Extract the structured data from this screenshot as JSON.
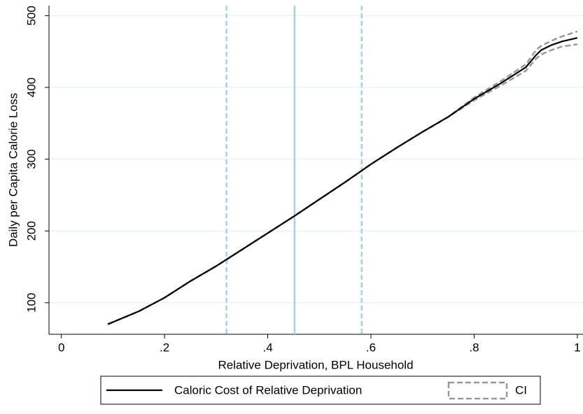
{
  "chart_data": {
    "type": "line",
    "x_label": "Relative Deprivation, BPL Household",
    "y_label": "Daily per Capita Calorie Loss",
    "xlim": [
      -0.024,
      1.011
    ],
    "ylim": [
      56,
      514
    ],
    "xticks": [
      0,
      {
        "value": 0.2,
        "label": ".2"
      },
      {
        "value": 0.4,
        "label": ".4"
      },
      {
        "value": 0.6,
        "label": ".6"
      },
      {
        "value": 0.8,
        "label": ".8"
      },
      1
    ],
    "yticks": [
      100,
      200,
      300,
      400,
      500
    ],
    "grid": true,
    "x": [
      0.09,
      0.15,
      0.2,
      0.25,
      0.3,
      0.35,
      0.4,
      0.45,
      0.5,
      0.55,
      0.6,
      0.65,
      0.7,
      0.75,
      0.8,
      0.85,
      0.9,
      0.92,
      0.93,
      0.95,
      0.97,
      1.0
    ],
    "series": [
      {
        "name": "Caloric Cost of Relative Deprivation",
        "color": "#000000",
        "values": [
          70,
          88,
          107,
          130,
          151,
          174,
          197,
          220,
          244,
          268,
          293,
          316,
          338,
          359,
          384,
          405,
          428,
          445,
          452,
          459,
          464,
          469
        ]
      }
    ],
    "band": {
      "name": "CI",
      "color": "#999999",
      "upper": [
        70,
        88,
        107,
        130,
        151,
        174,
        197,
        220,
        244,
        268,
        293,
        316,
        338,
        359,
        386,
        408,
        432,
        452,
        458,
        465,
        471,
        478
      ],
      "lower": [
        70,
        88,
        107,
        130,
        151,
        174,
        197,
        220,
        244,
        268,
        293,
        316,
        338,
        359,
        382,
        402,
        423,
        440,
        446,
        452,
        457,
        460
      ]
    },
    "reference_lines": [
      {
        "value": 0.32,
        "style": "dashed",
        "color": "#a6d2e6"
      },
      {
        "value": 0.452,
        "style": "solid",
        "color": "#a6d2e6"
      },
      {
        "value": 0.582,
        "style": "dashed",
        "color": "#a6d2e6"
      }
    ]
  }
}
